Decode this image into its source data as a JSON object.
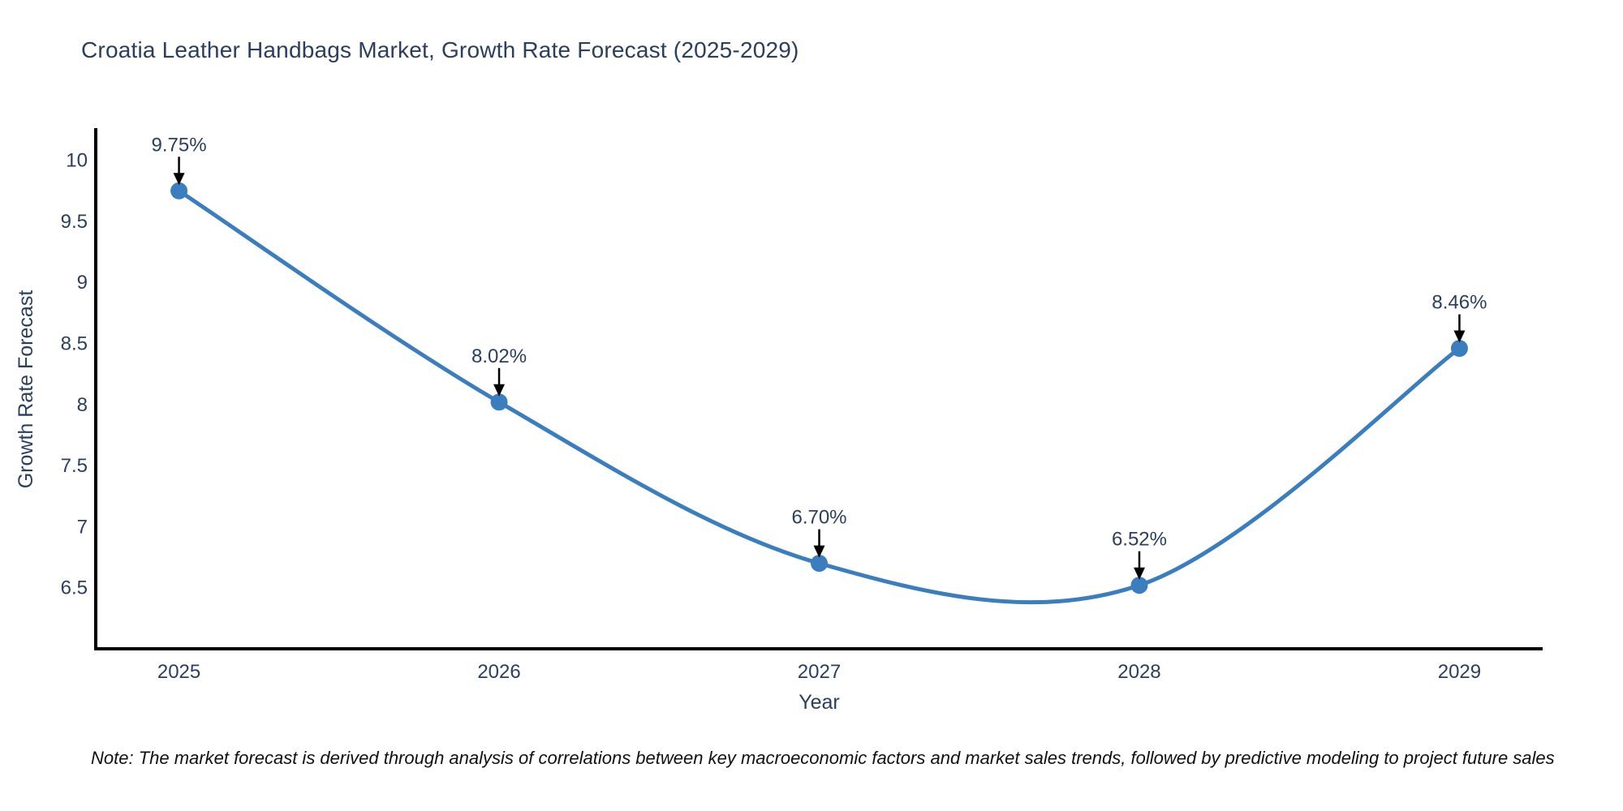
{
  "page": {
    "note": "Note: The market forecast is derived through analysis of correlations between key macroeconomic factors and market sales trends, followed by predictive modeling to project future sales"
  },
  "chart_data": {
    "type": "line",
    "line_shape": "spline",
    "title": "Croatia Leather Handbags Market, Growth Rate Forecast (2025-2029)",
    "xlabel": "Year",
    "ylabel": "Growth Rate Forecast",
    "x": [
      2025,
      2026,
      2027,
      2028,
      2029
    ],
    "y": [
      9.75,
      8.02,
      6.7,
      6.52,
      8.46
    ],
    "point_labels": [
      "9.75%",
      "8.02%",
      "6.70%",
      "6.52%",
      "8.46%"
    ],
    "xticks": [
      "2025",
      "2026",
      "2027",
      "2028",
      "2029"
    ],
    "xtick_values": [
      2025,
      2026,
      2027,
      2028,
      2029
    ],
    "yticks": [
      "6.5",
      "7",
      "7.5",
      "8",
      "8.5",
      "9",
      "9.5",
      "10"
    ],
    "ytick_values": [
      6.5,
      7,
      7.5,
      8,
      8.5,
      9,
      9.5,
      10
    ],
    "xlim": [
      2024.74,
      2029.26
    ],
    "ylim": [
      6.0,
      10.25
    ],
    "grid": false,
    "legend": false,
    "marker": "circle",
    "annotations_have_arrows": true,
    "colors": {
      "line": "#3a7ebf",
      "marker": "#3a7ebf",
      "axis_line": "#000000",
      "tick_text": "#2a3f5f",
      "title_text": "#2a3f5f",
      "annotation_text": "#2a3f5f",
      "arrow": "#000000",
      "note_text": "#111111",
      "background": "#ffffff"
    }
  }
}
